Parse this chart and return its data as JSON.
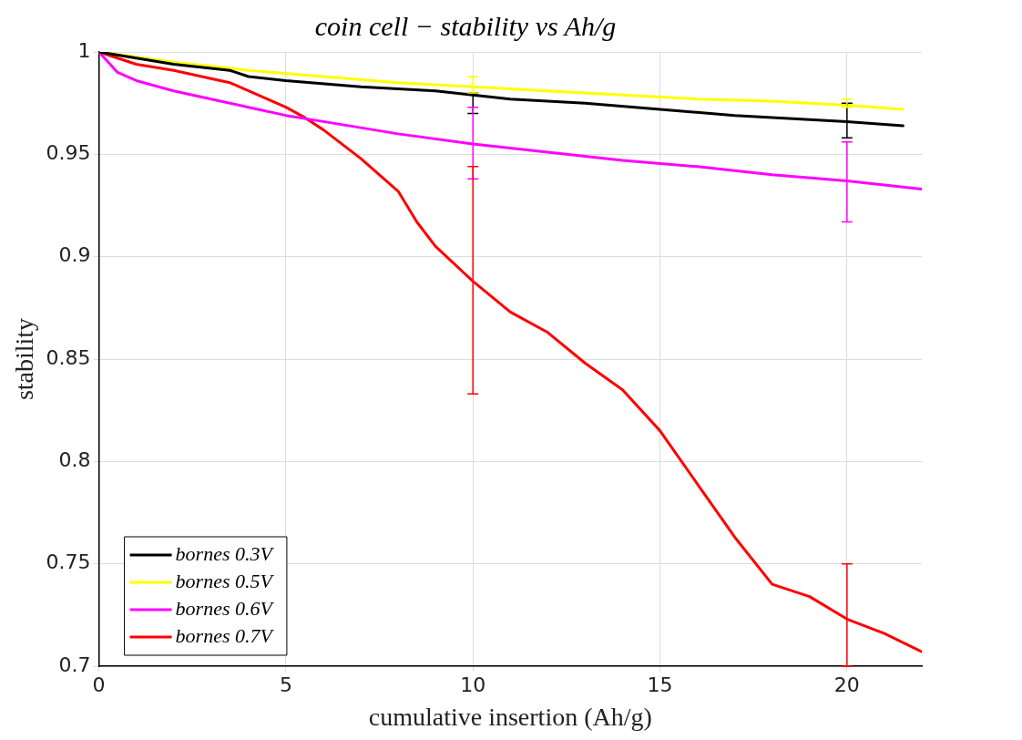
{
  "chart_data": {
    "type": "line",
    "title": "coin cell − stability vs Ah/g",
    "xlabel": "cumulative insertion (Ah/g)",
    "ylabel": "stability",
    "xlim": [
      0,
      22
    ],
    "xticks": [
      0,
      5,
      10,
      15,
      20
    ],
    "ylim": [
      0.7,
      1
    ],
    "yticks": [
      0.7,
      0.75,
      0.8,
      0.85,
      0.9,
      0.95,
      1
    ],
    "grid": true,
    "legend": "bottom left",
    "marker": "none",
    "line_style": "solid",
    "series": [
      {
        "name": "bornes 0.3V",
        "color": "#000000",
        "x": [
          0,
          1,
          2,
          3.5,
          4,
          5,
          7,
          9,
          10,
          11,
          13,
          15,
          17,
          20,
          21.5
        ],
        "values": [
          1,
          0.997,
          0.994,
          0.991,
          0.988,
          0.986,
          0.983,
          0.981,
          0.979,
          0.977,
          0.975,
          0.972,
          0.969,
          0.966,
          0.964
        ],
        "errors": [
          null,
          null,
          null,
          null,
          null,
          null,
          null,
          null,
          [
            0.97,
            0.98
          ],
          null,
          null,
          null,
          null,
          [
            0.958,
            0.975
          ],
          null
        ]
      },
      {
        "name": "bornes 0.5V",
        "color": "#ffff00",
        "x": [
          0,
          2,
          4,
          6,
          8,
          10,
          12,
          14,
          16,
          18,
          20,
          21.5
        ],
        "values": [
          1,
          0.995,
          0.991,
          0.988,
          0.985,
          0.983,
          0.981,
          0.979,
          0.977,
          0.976,
          0.974,
          0.972
        ],
        "errors": [
          null,
          null,
          null,
          null,
          null,
          [
            0.98,
            0.988
          ],
          null,
          null,
          null,
          null,
          [
            0.973,
            0.977
          ],
          null
        ]
      },
      {
        "name": "bornes 0.6V",
        "color": "#ff00ff",
        "x": [
          0,
          0.5,
          1,
          2,
          3,
          4,
          5,
          6,
          8,
          10,
          12,
          14,
          16,
          18,
          20,
          22
        ],
        "values": [
          1,
          0.99,
          0.986,
          0.981,
          0.977,
          0.973,
          0.969,
          0.966,
          0.96,
          0.955,
          0.951,
          0.947,
          0.944,
          0.94,
          0.937,
          0.933
        ],
        "errors": [
          null,
          null,
          null,
          null,
          null,
          null,
          null,
          null,
          null,
          [
            0.938,
            0.973
          ],
          null,
          null,
          null,
          null,
          [
            0.917,
            0.956
          ],
          null
        ]
      },
      {
        "name": "bornes 0.7V",
        "color": "#ff0000",
        "x": [
          0,
          1,
          2,
          3.5,
          4,
          5,
          5.5,
          6,
          7,
          8,
          8.5,
          9,
          10,
          11,
          12,
          13,
          14,
          15,
          16,
          17,
          18,
          19,
          20,
          21,
          22
        ],
        "values": [
          1,
          0.994,
          0.991,
          0.985,
          0.981,
          0.973,
          0.968,
          0.962,
          0.948,
          0.932,
          0.917,
          0.905,
          0.888,
          0.873,
          0.863,
          0.848,
          0.835,
          0.815,
          0.789,
          0.763,
          0.74,
          0.734,
          0.723,
          0.716,
          0.707
        ],
        "errors": [
          null,
          null,
          null,
          null,
          null,
          null,
          null,
          null,
          null,
          null,
          null,
          null,
          [
            0.833,
            0.944
          ],
          null,
          null,
          null,
          null,
          null,
          null,
          null,
          null,
          null,
          [
            0.7,
            0.75
          ],
          null,
          null
        ]
      }
    ]
  }
}
